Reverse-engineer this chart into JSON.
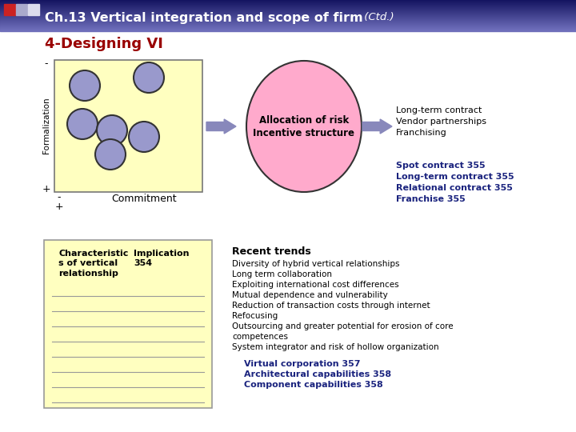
{
  "title_main": "Ch.13 Vertical integration and scope of firm",
  "title_ctd": " (Ctd.)",
  "subtitle": "4-Designing VI",
  "slide_bg": "#ffffff",
  "yellow_bg": "#ffffc0",
  "circle_fill": "#9999cc",
  "circle_edge": "#333333",
  "pink_fill": "#ffaacc",
  "pink_edge": "#333333",
  "formalization_label": "Formalization",
  "commitment_label": "Commitment",
  "arrow_color": "#8888bb",
  "alloc_text1": "Allocation of risk",
  "alloc_text2": "Incentive structure",
  "right_list_normal": [
    "Long-term contract",
    "Vendor partnerships",
    "Franchising"
  ],
  "right_list_bold": [
    "Spot contract 355",
    "Long-term contract 355",
    "Relational contract 355",
    "Franchise 355"
  ],
  "table_header1": "Characteristic\ns of vertical\nrelationship",
  "table_header2": "Implication\n354",
  "recent_title": "Recent trends",
  "recent_items": [
    "Diversity of hybrid vertical relationships",
    "Long term collaboration",
    "Exploiting international cost differences",
    "Mutual dependence and vulnerability",
    "Reduction of transaction costs through internet",
    "Refocusing",
    "Outsourcing and greater potential for erosion of core",
    "competences",
    "System integrator and risk of hollow organization"
  ],
  "bottom_bold": [
    "Virtual corporation 357",
    "Architectural capabilities 358",
    "Component capabilities 358"
  ],
  "navy": "#1a237e",
  "darkred": "#990000"
}
